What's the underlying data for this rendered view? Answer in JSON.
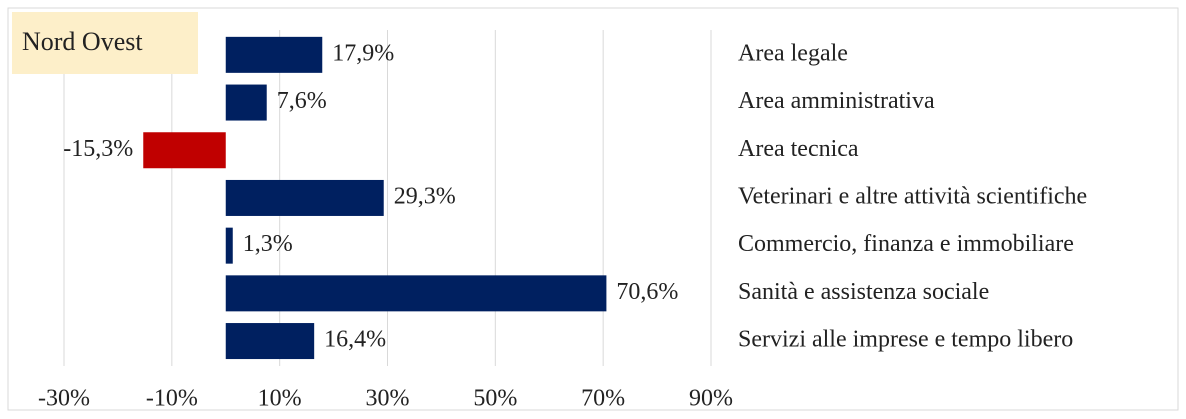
{
  "chart_data": {
    "type": "hbar",
    "title": "Nord Ovest",
    "categories": [
      "Area legale",
      "Area amministrativa",
      "Area tecnica",
      "Veterinari e altre attività scientifiche",
      "Commercio, finanza e immobiliare",
      "Sanità e assistenza sociale",
      "Servizi alle imprese e tempo libero"
    ],
    "values": [
      17.9,
      7.6,
      -15.3,
      29.3,
      1.3,
      70.6,
      16.4
    ],
    "value_labels": [
      "17,9%",
      "7,6%",
      "-15,3%",
      "29,3%",
      "1,3%",
      "70,6%",
      "16,4%"
    ],
    "color": "#002060",
    "negative_color": "#c00000",
    "xlim": [
      -30,
      90
    ],
    "xticks": [
      {
        "value": -30,
        "label": "-30%"
      },
      {
        "value": -10,
        "label": "-10%"
      },
      {
        "value": 10,
        "label": "10%"
      },
      {
        "value": 30,
        "label": "30%"
      },
      {
        "value": 50,
        "label": "50%"
      },
      {
        "value": 70,
        "label": "70%"
      },
      {
        "value": 90,
        "label": "90%"
      }
    ],
    "grid": true
  }
}
